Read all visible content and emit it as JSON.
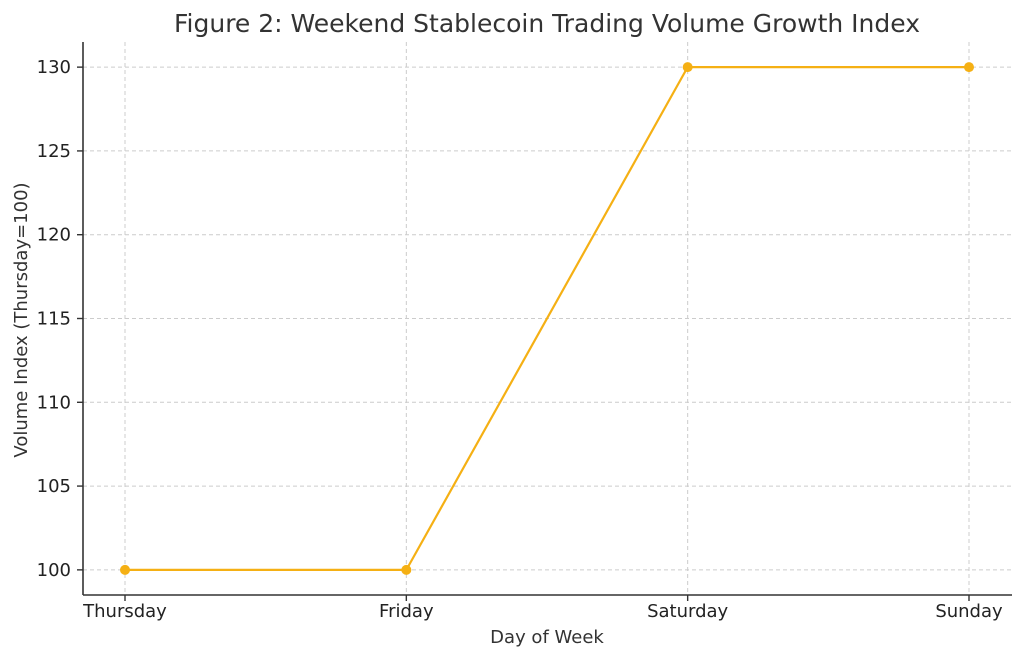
{
  "chart_data": {
    "type": "line",
    "title": "Figure 2: Weekend Stablecoin Trading Volume Growth Index",
    "xlabel": "Day of Week",
    "ylabel": "Volume Index (Thursday=100)",
    "categories": [
      "Thursday",
      "Friday",
      "Saturday",
      "Sunday"
    ],
    "series": [
      {
        "values": [
          100,
          100,
          130,
          130
        ],
        "color": "#f5b014",
        "marker": "circle"
      }
    ],
    "ylim": [
      98.5,
      131.5
    ],
    "yticks": [
      100,
      105,
      110,
      115,
      120,
      125,
      130
    ],
    "grid": true,
    "legend": "none"
  }
}
